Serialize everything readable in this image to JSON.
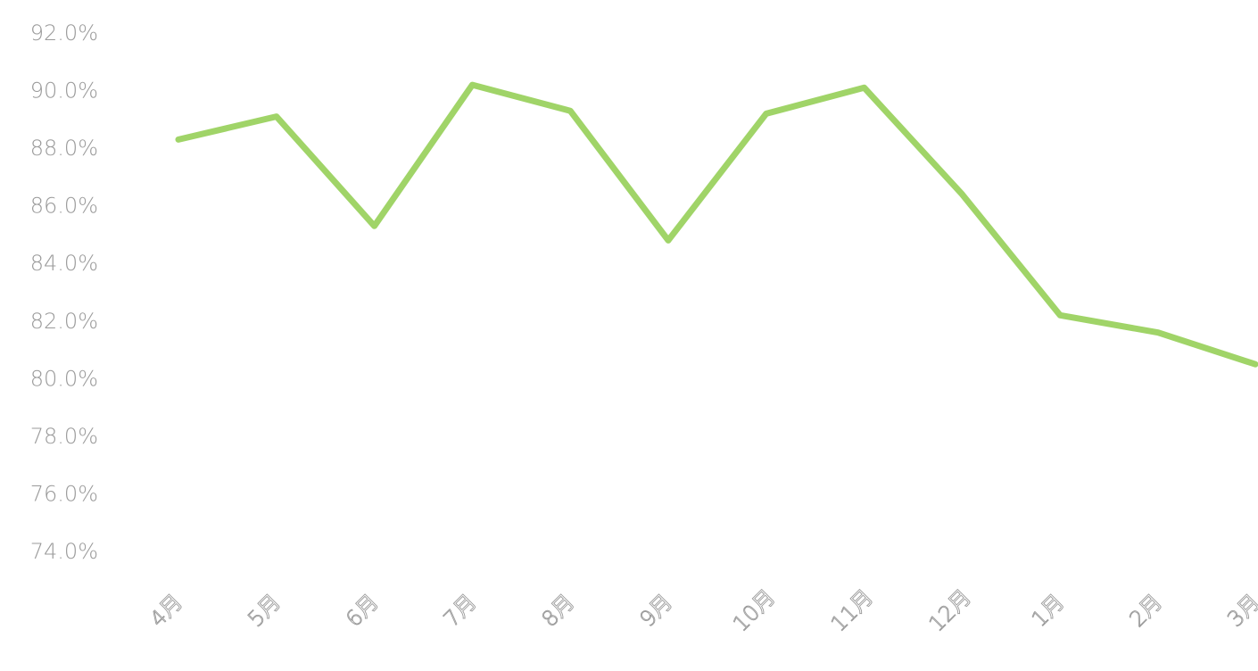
{
  "chart_data": {
    "type": "line",
    "title": "",
    "xlabel": "",
    "ylabel": "",
    "categories": [
      "4月",
      "5月",
      "6月",
      "7月",
      "8月",
      "9月",
      "10月",
      "11月",
      "12月",
      "1月",
      "2月",
      "3月"
    ],
    "series": [
      {
        "values": [
          88.3,
          89.1,
          85.3,
          90.2,
          89.3,
          84.8,
          89.2,
          90.1,
          86.4,
          82.2,
          81.6,
          80.5
        ],
        "color": "#a0d468"
      }
    ],
    "ylim": [
      74,
      92
    ],
    "yticks": [
      "92.0%",
      "90.0%",
      "88.0%",
      "86.0%",
      "84.0%",
      "82.0%",
      "80.0%",
      "78.0%",
      "76.0%",
      "74.0%"
    ],
    "ytick_values": [
      92,
      90,
      88,
      86,
      84,
      82,
      80,
      78,
      76,
      74
    ],
    "grid": false,
    "legend": "none"
  }
}
